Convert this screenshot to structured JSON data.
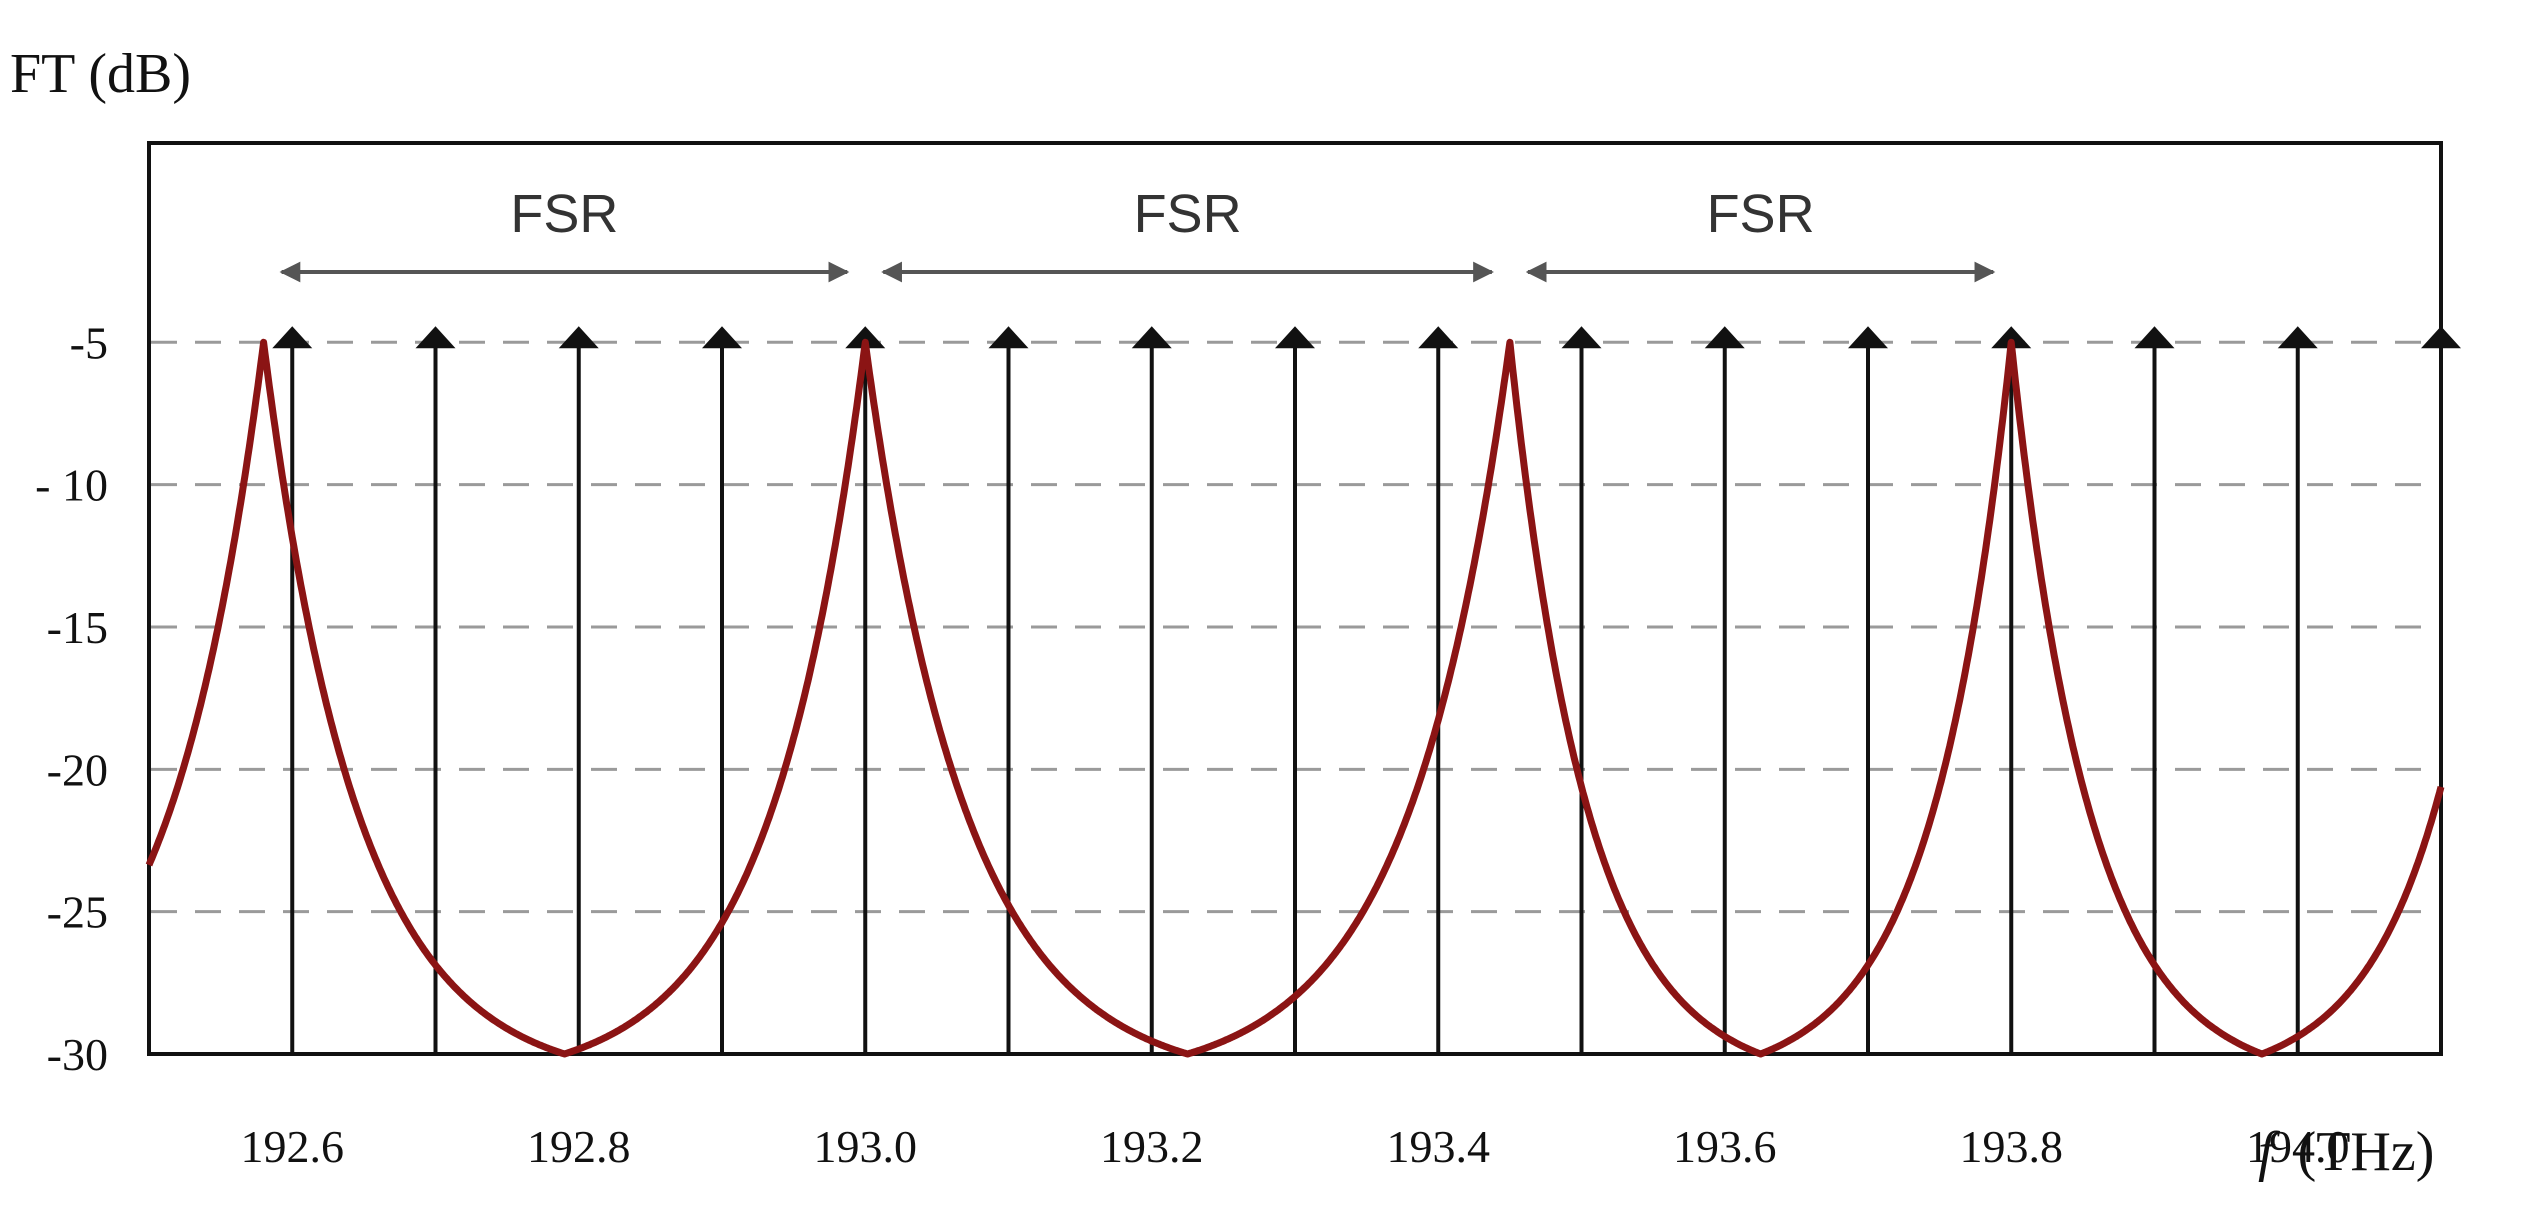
{
  "chart_data": {
    "type": "line",
    "ylabel": "FT (dB)",
    "xlabel_symbol": "f",
    "xlabel_unit": "(THz)",
    "xlim": [
      192.5,
      194.1
    ],
    "ylim": [
      -30,
      2
    ],
    "xticks": [
      {
        "value": 192.6,
        "label": "192.6"
      },
      {
        "value": 192.8,
        "label": "192.8"
      },
      {
        "value": 193.0,
        "label": "193.0"
      },
      {
        "value": 193.2,
        "label": "193.2"
      },
      {
        "value": 193.4,
        "label": "193.4"
      },
      {
        "value": 193.6,
        "label": "193.6"
      },
      {
        "value": 193.8,
        "label": "193.8"
      },
      {
        "value": 194.0,
        "label": "194.0"
      }
    ],
    "yticks": [
      {
        "value": -5,
        "label": "-5"
      },
      {
        "value": -10,
        "label": "- 10"
      },
      {
        "value": -15,
        "label": "-15"
      },
      {
        "value": -20,
        "label": "-20"
      },
      {
        "value": -25,
        "label": "-25"
      },
      {
        "value": -30,
        "label": "-30"
      }
    ],
    "grid": "horizontal-dashed",
    "series": [
      {
        "color": "#8b1414",
        "peaks": [
          192.58,
          193.0,
          193.45,
          193.8
        ],
        "peak_db": -5,
        "min_db": -30,
        "edge_left_db": -23.5,
        "edge_right_db": -19.5
      }
    ],
    "channel_arrows": {
      "frequencies": [
        192.6,
        192.7,
        192.8,
        192.9,
        193.0,
        193.1,
        193.2,
        193.3,
        193.4,
        193.5,
        193.6,
        193.7,
        193.8,
        193.9,
        194.0,
        194.1
      ],
      "color": "#111111"
    },
    "annotations": [
      {
        "label": "FSR",
        "from": 192.58,
        "to": 193.0
      },
      {
        "label": "FSR",
        "from": 193.0,
        "to": 193.45
      },
      {
        "label": "FSR",
        "from": 193.45,
        "to": 193.8
      }
    ]
  }
}
